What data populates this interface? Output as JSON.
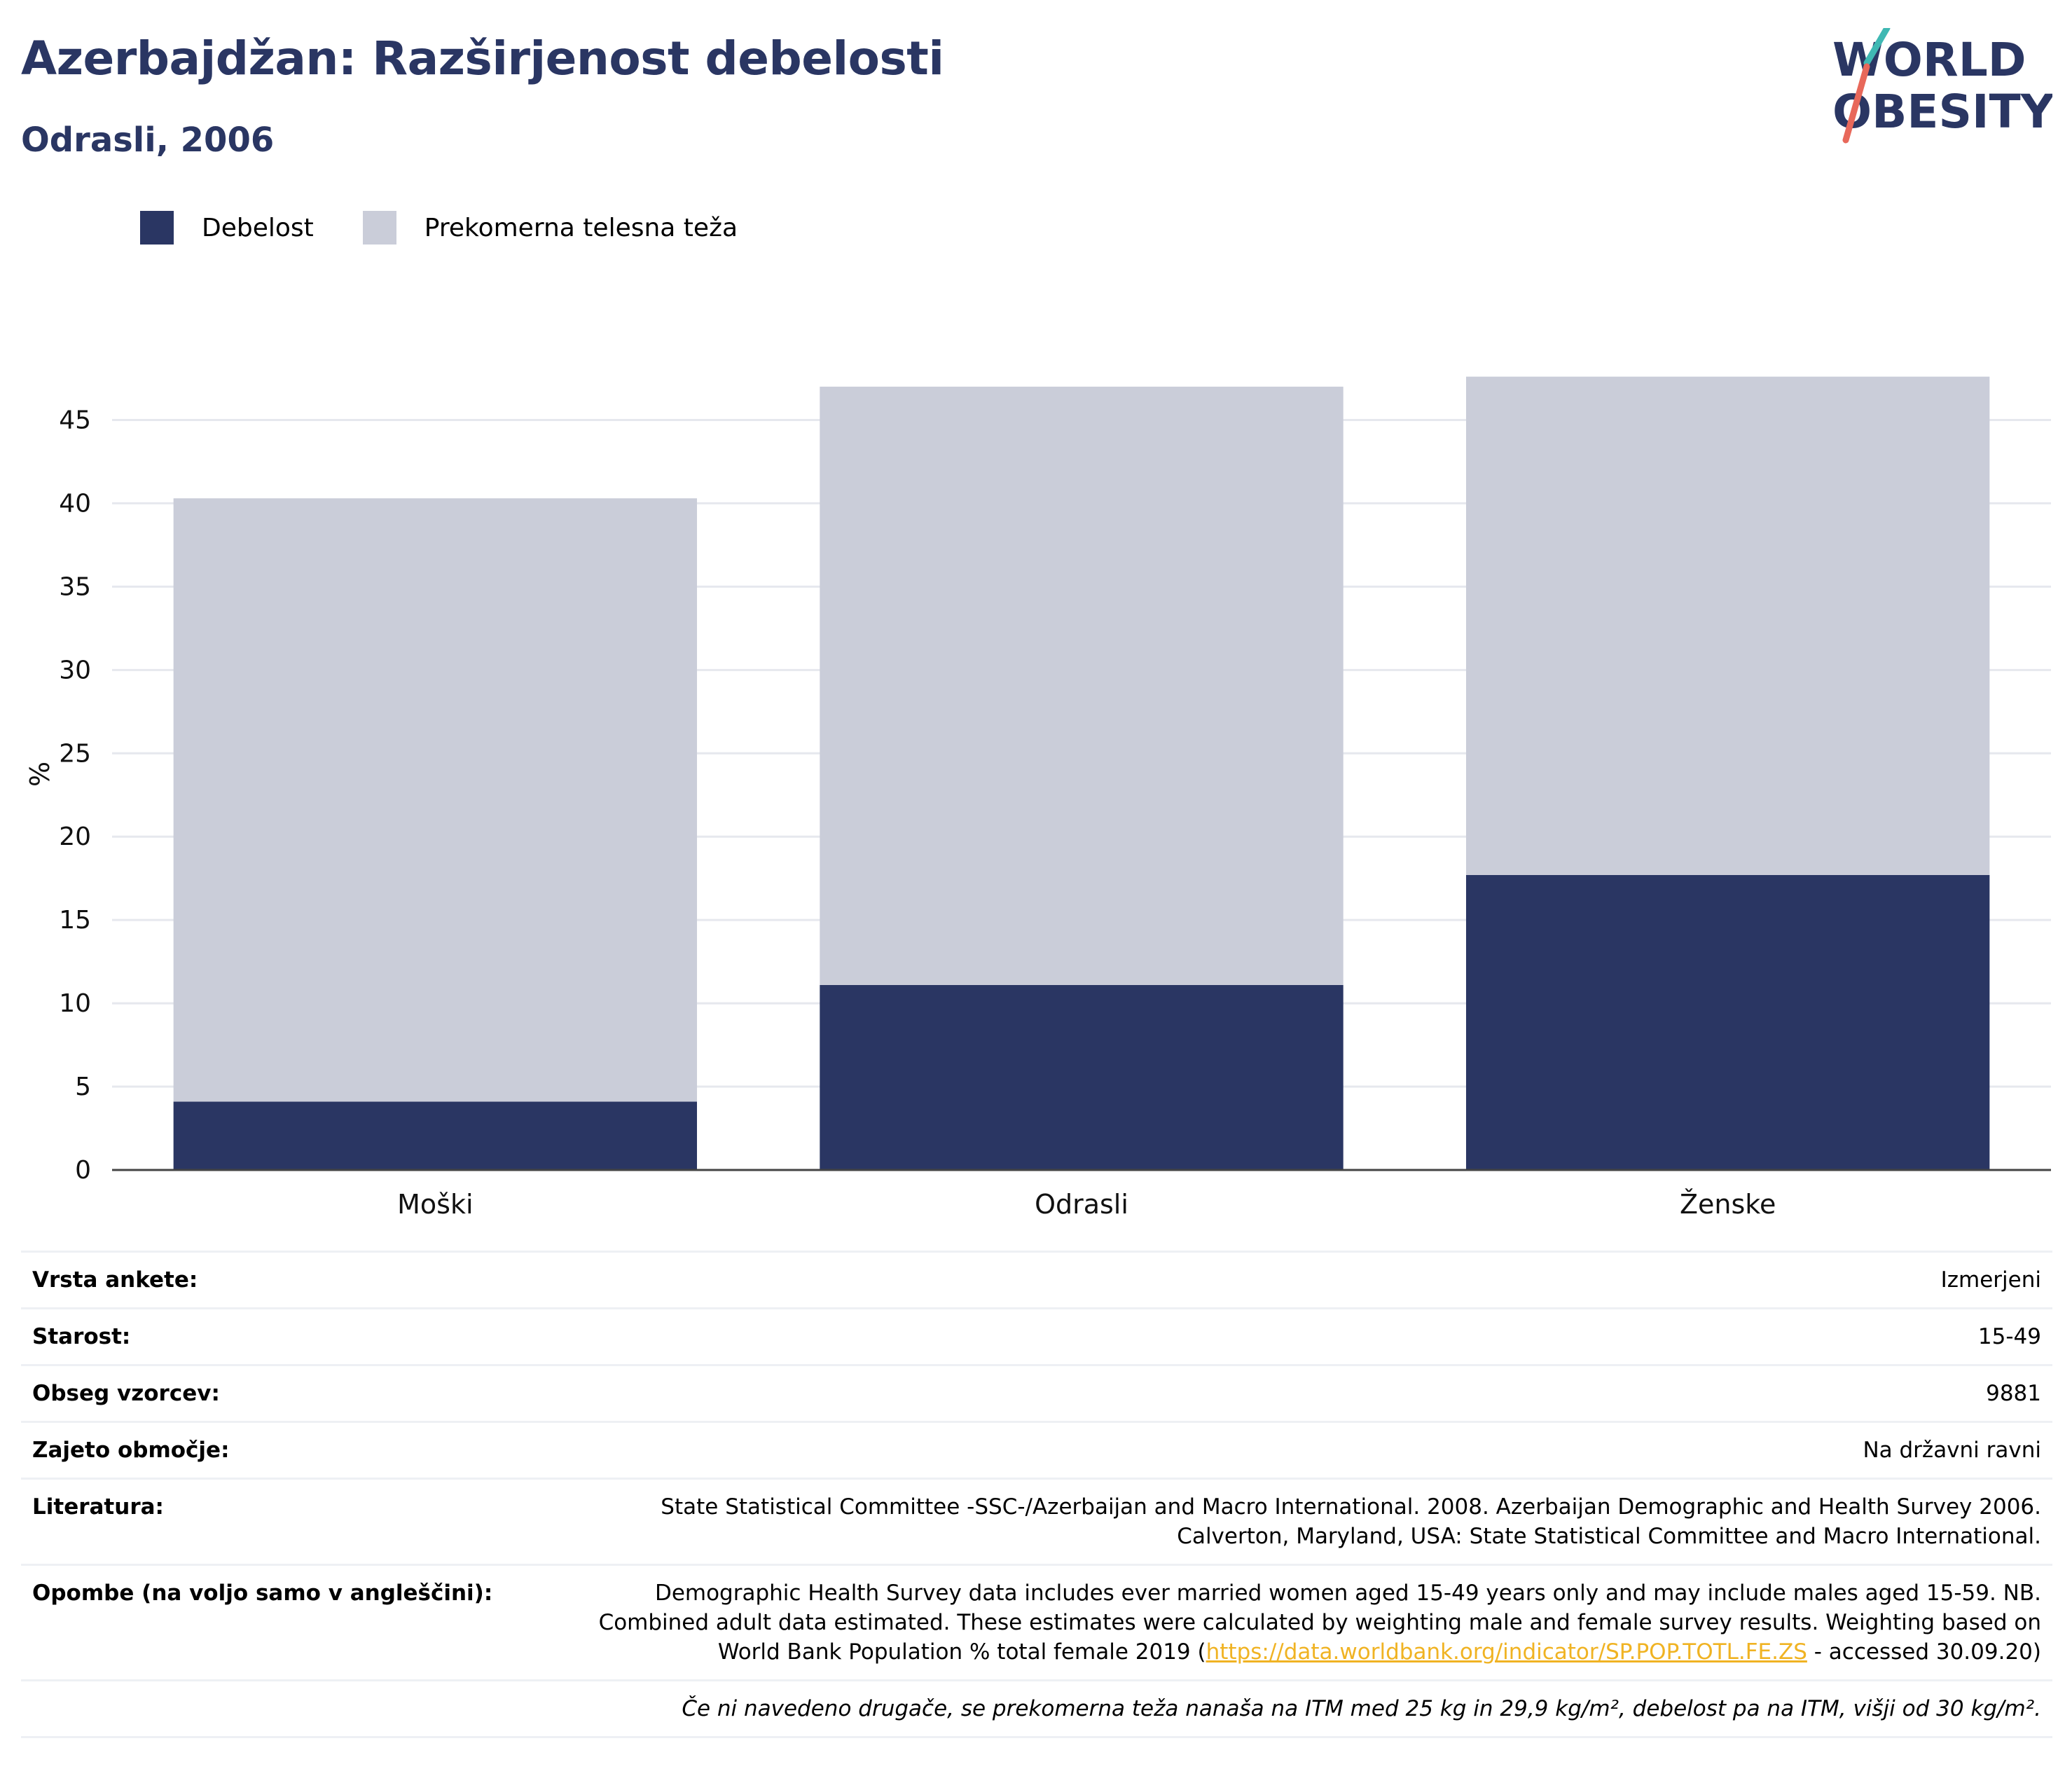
{
  "header": {
    "title": "Azerbajdžan: Razširjenost debelosti",
    "subtitle": "Odrasli, 2006"
  },
  "logo": {
    "line1": "WORLD",
    "line2": "OBESITY"
  },
  "colors": {
    "obesity": "#2a3663",
    "overweight": "#cacdd9",
    "grid": "#e6e8ee",
    "axis": "#444444",
    "accent_teal": "#3fb8b3",
    "accent_red": "#e8685a"
  },
  "chart_data": {
    "type": "bar",
    "stacked": true,
    "categories": [
      "Moški",
      "Odrasli",
      "Ženske"
    ],
    "series": [
      {
        "name": "Debelost",
        "values": [
          4.1,
          11.1,
          17.7
        ]
      },
      {
        "name": "Prekomerna telesna teža",
        "values": [
          36.2,
          35.9,
          29.9
        ]
      }
    ],
    "ylabel": "%",
    "ylim": [
      0,
      47.5
    ],
    "yticks": [
      0,
      5,
      10,
      15,
      20,
      25,
      30,
      35,
      40,
      45
    ],
    "grid": true,
    "legend_position": "top-left"
  },
  "meta": {
    "survey_type_label": "Vrsta ankete:",
    "survey_type_value": "Izmerjeni",
    "age_label": "Starost:",
    "age_value": "15-49",
    "sample_label": "Obseg vzorcev:",
    "sample_value": "9881",
    "area_label": "Zajeto območje:",
    "area_value": "Na državni ravni",
    "ref_label": "Literatura:",
    "ref_line1": "State Statistical Committee -SSC-/Azerbaijan and Macro International. 2008. Azerbaijan Demographic and Health Survey 2006.",
    "ref_line2": "Calverton, Maryland, USA: State Statistical Committee and Macro International.",
    "notes_label": "Opombe (na voljo samo v angleščini):",
    "notes_line1": "Demographic Health Survey data includes ever married women aged 15-49 years only and may include males aged 15-59. NB.",
    "notes_line2": "Combined adult data estimated. These estimates were calculated by weighting male and female survey results. Weighting based on",
    "notes_line3_pre": "World Bank Population % total female 2019 (",
    "notes_link": "https://data.worldbank.org/indicator/SP.POP.TOTL.FE.ZS",
    "notes_line3_post": " - accessed 30.09.20)",
    "footnote": "Če ni navedeno drugače, se prekomerna teža nanaša na ITM med 25 kg in 29,9 kg/m², debelost pa na ITM, višji od 30 kg/m²."
  }
}
